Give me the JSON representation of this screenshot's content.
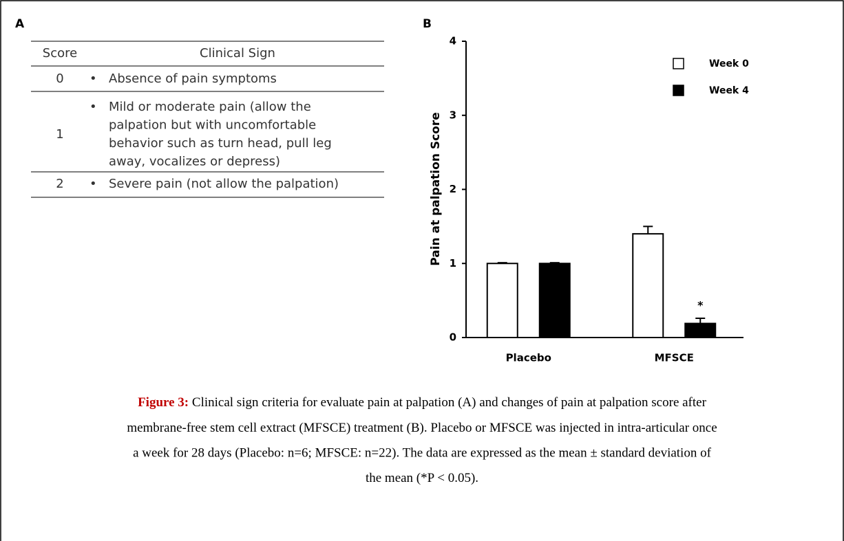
{
  "panel_a": {
    "label": "A",
    "table": {
      "header": [
        "Score",
        "Clinical Sign"
      ],
      "rows": [
        {
          "score": "0",
          "sign": [
            "Absence of pain symptoms"
          ]
        },
        {
          "score": "1",
          "sign": [
            "Mild or moderate pain (allow the",
            "palpation but with uncomfortable",
            "behavior such as turn head, pull leg",
            "away, vocalizes or depress)"
          ]
        },
        {
          "score": "2",
          "sign": [
            "Severe pain (not allow the palpation)"
          ]
        }
      ]
    }
  },
  "chart_data": {
    "type": "bar",
    "panel_label": "B",
    "ylabel": "Pain at palpation Score",
    "categories": [
      "Placebo",
      "MFSCE"
    ],
    "series": [
      {
        "name": "Week 0",
        "color": "#ffffff",
        "values": [
          1.0,
          1.4
        ],
        "errors": [
          0.01,
          0.1
        ]
      },
      {
        "name": "Week 4",
        "color": "#000000",
        "values": [
          1.0,
          0.19
        ],
        "errors": [
          0.01,
          0.07
        ]
      }
    ],
    "ylim": [
      0,
      4
    ],
    "yticks": [
      0,
      1,
      2,
      3,
      4
    ],
    "annotation": "*",
    "legend": "upper right"
  },
  "caption": {
    "label": "Figure 3:",
    "lines": [
      "Clinical sign criteria for evaluate pain at palpation (A) and changes of pain at palpation score after",
      "membrane-free stem cell extract (MFSCE) treatment (B). Placebo or MFSCE was injected in intra-articular once",
      "a week for 28 days (Placebo: n=6; MFSCE: n=22). The data are expressed as the mean ± standard deviation of",
      "the mean (*P < 0.05)."
    ]
  }
}
